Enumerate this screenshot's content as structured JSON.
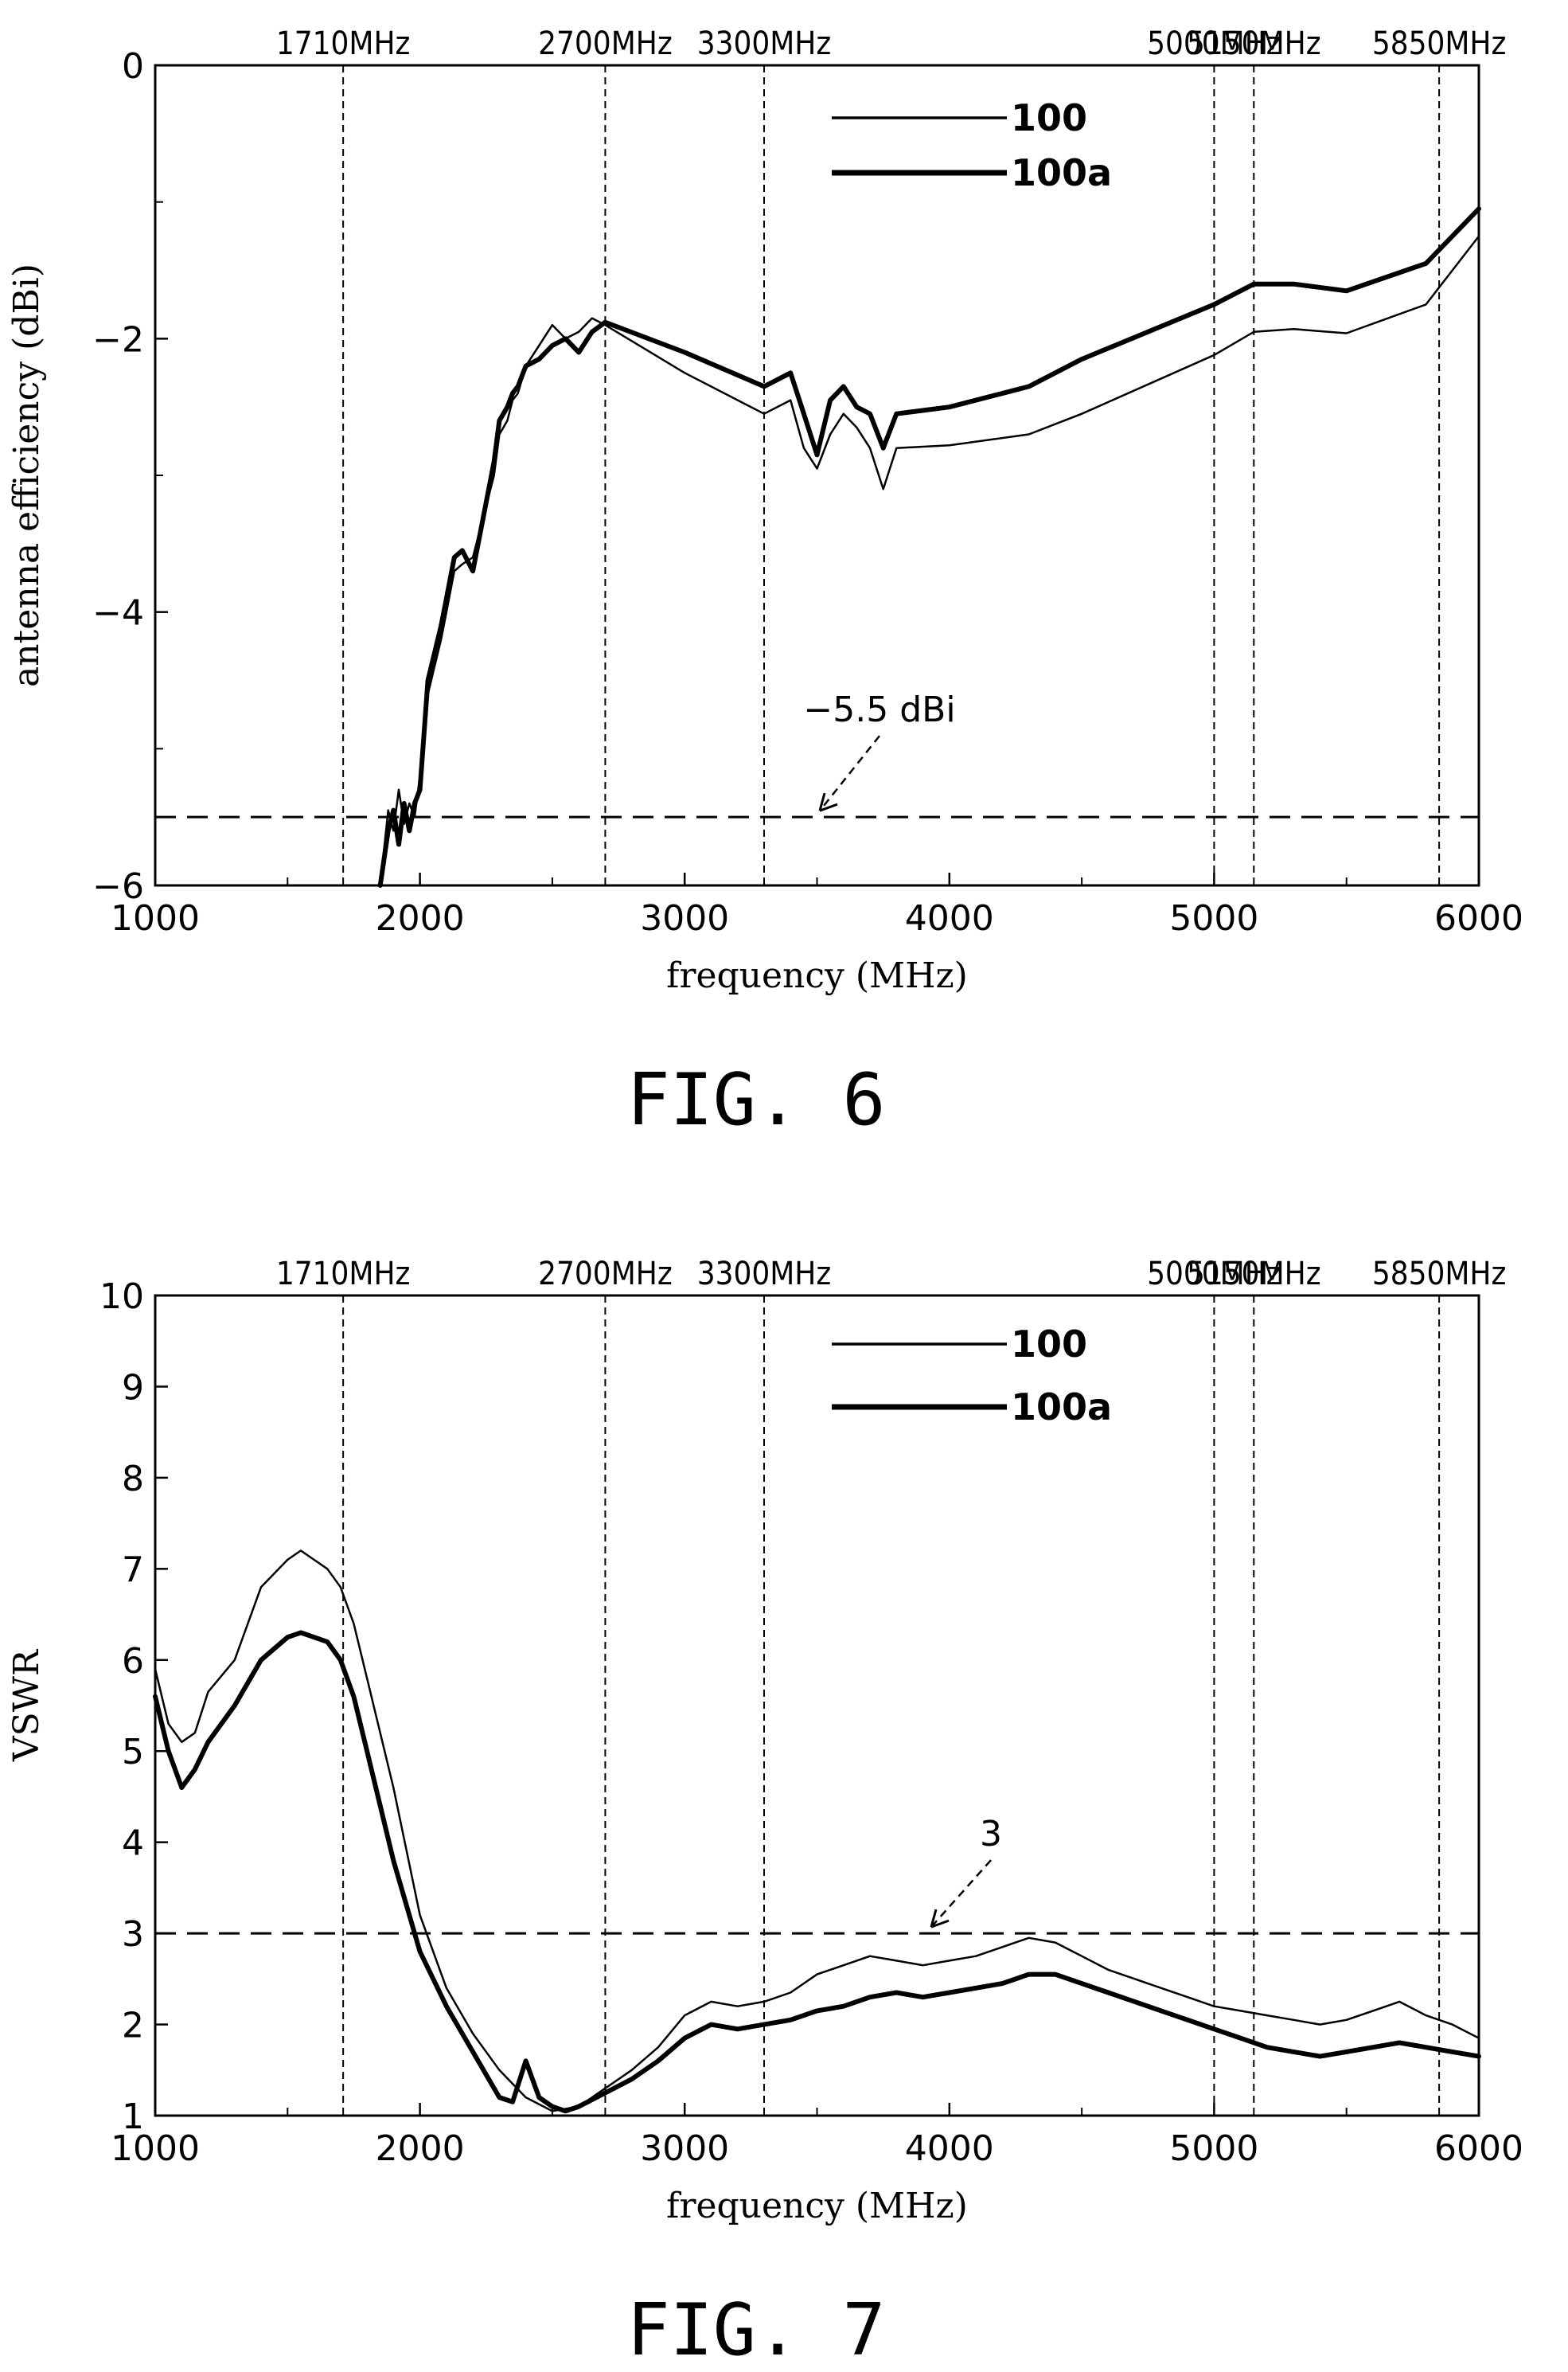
{
  "figures": [
    {
      "caption": "FIG. 6",
      "chart_data": {
        "type": "line",
        "xlabel": "frequency (MHz)",
        "ylabel": "antenna efficiency (dBi)",
        "xlim": [
          1000,
          6000
        ],
        "ylim": [
          -6,
          0
        ],
        "xticks": [
          1000,
          2000,
          3000,
          4000,
          5000,
          6000
        ],
        "yticks": [
          0,
          -2,
          -4,
          -6
        ],
        "ytick_labels": [
          "0",
          "−2",
          "−4",
          "−6"
        ],
        "band_markers": [
          {
            "x": 1710,
            "label": "1710MHz"
          },
          {
            "x": 2700,
            "label": "2700MHz"
          },
          {
            "x": 3300,
            "label": "3300MHz"
          },
          {
            "x": 5000,
            "label": "5000MHz"
          },
          {
            "x": 5150,
            "label": "5150MHz"
          },
          {
            "x": 5850,
            "label": "5850MHz"
          }
        ],
        "reference_line": {
          "y": -5.5,
          "label": "−5.5 dBi"
        },
        "legend_position": "top-center",
        "series": [
          {
            "name": "100",
            "x": [
              1850,
              1880,
              1900,
              1920,
              1940,
              1960,
              1980,
              2000,
              2030,
              2080,
              2100,
              2130,
              2160,
              2200,
              2240,
              2280,
              2300,
              2330,
              2350,
              2370,
              2400,
              2450,
              2500,
              2550,
              2600,
              2650,
              2700,
              3000,
              3300,
              3400,
              3450,
              3500,
              3550,
              3600,
              3650,
              3700,
              3750,
              3800,
              4000,
              4300,
              4500,
              5000,
              5150,
              5300,
              5500,
              5800,
              6000
            ],
            "y": [
              -6.0,
              -5.45,
              -5.6,
              -5.3,
              -5.55,
              -5.4,
              -5.5,
              -5.2,
              -4.6,
              -4.2,
              -4.0,
              -3.7,
              -3.65,
              -3.6,
              -3.3,
              -3.0,
              -2.7,
              -2.6,
              -2.45,
              -2.4,
              -2.2,
              -2.05,
              -1.9,
              -2.0,
              -1.95,
              -1.85,
              -1.9,
              -2.25,
              -2.55,
              -2.45,
              -2.8,
              -2.95,
              -2.7,
              -2.55,
              -2.65,
              -2.8,
              -3.1,
              -2.8,
              -2.78,
              -2.7,
              -2.55,
              -2.12,
              -1.95,
              -1.93,
              -1.96,
              -1.75,
              -1.25
            ]
          },
          {
            "name": "100a",
            "x": [
              1850,
              1880,
              1900,
              1920,
              1940,
              1960,
              1980,
              2000,
              2030,
              2080,
              2100,
              2130,
              2160,
              2200,
              2240,
              2280,
              2300,
              2330,
              2350,
              2370,
              2400,
              2450,
              2500,
              2550,
              2600,
              2650,
              2700,
              3000,
              3300,
              3400,
              3450,
              3500,
              3550,
              3600,
              3650,
              3700,
              3750,
              3800,
              4000,
              4300,
              4500,
              5000,
              5150,
              5300,
              5500,
              5800,
              6000
            ],
            "y": [
              -6.0,
              -5.6,
              -5.45,
              -5.7,
              -5.4,
              -5.6,
              -5.4,
              -5.3,
              -4.5,
              -4.1,
              -3.9,
              -3.6,
              -3.55,
              -3.7,
              -3.3,
              -2.9,
              -2.6,
              -2.5,
              -2.4,
              -2.35,
              -2.2,
              -2.15,
              -2.05,
              -2.0,
              -2.1,
              -1.95,
              -1.88,
              -2.1,
              -2.35,
              -2.25,
              -2.55,
              -2.85,
              -2.45,
              -2.35,
              -2.5,
              -2.55,
              -2.8,
              -2.55,
              -2.5,
              -2.35,
              -2.15,
              -1.75,
              -1.6,
              -1.6,
              -1.65,
              -1.45,
              -1.05
            ]
          }
        ]
      }
    },
    {
      "caption": "FIG. 7",
      "chart_data": {
        "type": "line",
        "xlabel": "frequency (MHz)",
        "ylabel": "VSWR",
        "xlim": [
          1000,
          6000
        ],
        "ylim": [
          1,
          10
        ],
        "xticks": [
          1000,
          2000,
          3000,
          4000,
          5000,
          6000
        ],
        "yticks": [
          1,
          2,
          3,
          4,
          5,
          6,
          7,
          8,
          9,
          10
        ],
        "ytick_labels": [
          "1",
          "2",
          "3",
          "4",
          "5",
          "6",
          "7",
          "8",
          "9",
          "10"
        ],
        "band_markers": [
          {
            "x": 1710,
            "label": "1710MHz"
          },
          {
            "x": 2700,
            "label": "2700MHz"
          },
          {
            "x": 3300,
            "label": "3300MHz"
          },
          {
            "x": 5000,
            "label": "5000MHz"
          },
          {
            "x": 5150,
            "label": "5150MHz"
          },
          {
            "x": 5850,
            "label": "5850MHz"
          }
        ],
        "reference_line": {
          "y": 3,
          "label": "3"
        },
        "legend_position": "top-center",
        "series": [
          {
            "name": "100",
            "x": [
              1000,
              1050,
              1100,
              1150,
              1200,
              1300,
              1400,
              1500,
              1550,
              1600,
              1650,
              1700,
              1750,
              1800,
              1900,
              2000,
              2100,
              2200,
              2300,
              2400,
              2500,
              2600,
              2700,
              2800,
              2900,
              3000,
              3100,
              3200,
              3300,
              3400,
              3500,
              3600,
              3700,
              3800,
              3900,
              4000,
              4100,
              4200,
              4300,
              4400,
              4500,
              4600,
              4700,
              4800,
              4900,
              5000,
              5100,
              5200,
              5300,
              5400,
              5500,
              5600,
              5700,
              5800,
              5900,
              6000
            ],
            "y": [
              5.9,
              5.3,
              5.1,
              5.2,
              5.65,
              6.0,
              6.8,
              7.1,
              7.2,
              7.1,
              7.0,
              6.8,
              6.4,
              5.8,
              4.6,
              3.2,
              2.4,
              1.9,
              1.5,
              1.2,
              1.05,
              1.1,
              1.3,
              1.5,
              1.75,
              2.1,
              2.25,
              2.2,
              2.25,
              2.35,
              2.55,
              2.65,
              2.75,
              2.7,
              2.65,
              2.7,
              2.75,
              2.85,
              2.95,
              2.9,
              2.75,
              2.6,
              2.5,
              2.4,
              2.3,
              2.2,
              2.15,
              2.1,
              2.05,
              2.0,
              2.05,
              2.15,
              2.25,
              2.1,
              2.0,
              1.85
            ]
          },
          {
            "name": "100a",
            "x": [
              1000,
              1050,
              1100,
              1150,
              1200,
              1300,
              1400,
              1500,
              1550,
              1600,
              1650,
              1700,
              1750,
              1800,
              1900,
              2000,
              2100,
              2200,
              2300,
              2350,
              2400,
              2450,
              2500,
              2550,
              2600,
              2700,
              2800,
              2900,
              3000,
              3100,
              3200,
              3300,
              3400,
              3500,
              3600,
              3700,
              3800,
              3900,
              4000,
              4100,
              4200,
              4300,
              4400,
              4500,
              4600,
              4700,
              4800,
              4900,
              5000,
              5100,
              5200,
              5300,
              5400,
              5500,
              5600,
              5700,
              5800,
              5900,
              6000
            ],
            "y": [
              5.6,
              5.0,
              4.6,
              4.8,
              5.1,
              5.5,
              6.0,
              6.25,
              6.3,
              6.25,
              6.2,
              6.0,
              5.6,
              5.0,
              3.8,
              2.8,
              2.2,
              1.7,
              1.2,
              1.15,
              1.6,
              1.2,
              1.1,
              1.05,
              1.1,
              1.25,
              1.4,
              1.6,
              1.85,
              2.0,
              1.95,
              2.0,
              2.05,
              2.15,
              2.2,
              2.3,
              2.35,
              2.3,
              2.35,
              2.4,
              2.45,
              2.55,
              2.55,
              2.45,
              2.35,
              2.25,
              2.15,
              2.05,
              1.95,
              1.85,
              1.75,
              1.7,
              1.65,
              1.7,
              1.75,
              1.8,
              1.75,
              1.7,
              1.65
            ]
          }
        ]
      }
    }
  ]
}
